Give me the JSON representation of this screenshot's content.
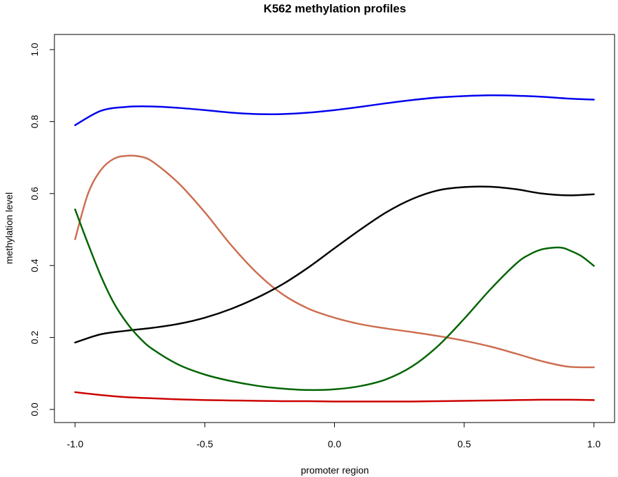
{
  "chart_data": {
    "type": "line",
    "title": "K562 methylation profiles",
    "xlabel": "promoter region",
    "ylabel": "methylation level",
    "xlim": [
      -1.0,
      1.0
    ],
    "ylim": [
      0.0,
      1.0
    ],
    "xticks": [
      -1.0,
      -0.5,
      0.0,
      0.5,
      1.0
    ],
    "xtick_labels": [
      "-1.0",
      "-0.5",
      "0.0",
      "0.5",
      "1.0"
    ],
    "yticks": [
      0.0,
      0.2,
      0.4,
      0.6,
      0.8,
      1.0
    ],
    "ytick_labels": [
      "0.0",
      "0.2",
      "0.4",
      "0.6",
      "0.8",
      "1.0"
    ],
    "grid": false,
    "legend": "none",
    "series": [
      {
        "color": "#0000ee",
        "x": [
          -1.0,
          -0.9,
          -0.8,
          -0.7,
          -0.6,
          -0.5,
          -0.4,
          -0.3,
          -0.2,
          -0.1,
          0.0,
          0.1,
          0.2,
          0.3,
          0.4,
          0.5,
          0.6,
          0.7,
          0.8,
          0.9,
          1.0
        ],
        "y": [
          0.79,
          0.83,
          0.841,
          0.842,
          0.838,
          0.832,
          0.825,
          0.821,
          0.821,
          0.825,
          0.832,
          0.841,
          0.851,
          0.86,
          0.867,
          0.871,
          0.873,
          0.872,
          0.869,
          0.864,
          0.861
        ]
      },
      {
        "color": "#cd6e50",
        "x": [
          -1.0,
          -0.95,
          -0.9,
          -0.85,
          -0.8,
          -0.75,
          -0.7,
          -0.6,
          -0.5,
          -0.4,
          -0.3,
          -0.2,
          -0.1,
          0.0,
          0.1,
          0.2,
          0.3,
          0.4,
          0.5,
          0.6,
          0.7,
          0.8,
          0.9,
          1.0
        ],
        "y": [
          0.473,
          0.6,
          0.666,
          0.697,
          0.705,
          0.703,
          0.688,
          0.628,
          0.548,
          0.458,
          0.38,
          0.32,
          0.28,
          0.255,
          0.237,
          0.225,
          0.215,
          0.204,
          0.191,
          0.175,
          0.155,
          0.134,
          0.119,
          0.117
        ]
      },
      {
        "color": "#000000",
        "x": [
          -1.0,
          -0.9,
          -0.8,
          -0.7,
          -0.6,
          -0.5,
          -0.4,
          -0.3,
          -0.2,
          -0.1,
          0.0,
          0.1,
          0.2,
          0.3,
          0.4,
          0.5,
          0.6,
          0.7,
          0.8,
          0.9,
          1.0
        ],
        "y": [
          0.186,
          0.209,
          0.219,
          0.227,
          0.238,
          0.255,
          0.279,
          0.31,
          0.348,
          0.395,
          0.448,
          0.5,
          0.548,
          0.585,
          0.609,
          0.618,
          0.619,
          0.612,
          0.6,
          0.595,
          0.598
        ]
      },
      {
        "color": "#006400",
        "x": [
          -1.0,
          -0.95,
          -0.9,
          -0.85,
          -0.8,
          -0.75,
          -0.7,
          -0.6,
          -0.5,
          -0.4,
          -0.3,
          -0.2,
          -0.1,
          0.0,
          0.1,
          0.2,
          0.3,
          0.4,
          0.5,
          0.6,
          0.7,
          0.75,
          0.8,
          0.85,
          0.88,
          0.9,
          0.95,
          1.0
        ],
        "y": [
          0.556,
          0.46,
          0.37,
          0.295,
          0.24,
          0.198,
          0.167,
          0.124,
          0.097,
          0.079,
          0.066,
          0.058,
          0.054,
          0.056,
          0.065,
          0.084,
          0.12,
          0.177,
          0.252,
          0.333,
          0.405,
          0.43,
          0.445,
          0.45,
          0.449,
          0.444,
          0.427,
          0.399
        ]
      },
      {
        "color": "#cc0000",
        "x": [
          -1.0,
          -0.9,
          -0.8,
          -0.7,
          -0.6,
          -0.5,
          -0.4,
          -0.3,
          -0.2,
          -0.1,
          0.0,
          0.1,
          0.2,
          0.3,
          0.4,
          0.5,
          0.6,
          0.7,
          0.8,
          0.9,
          1.0
        ],
        "y": [
          0.048,
          0.04,
          0.034,
          0.031,
          0.028,
          0.026,
          0.025,
          0.024,
          0.023,
          0.023,
          0.022,
          0.022,
          0.022,
          0.022,
          0.023,
          0.024,
          0.025,
          0.026,
          0.027,
          0.027,
          0.026
        ]
      }
    ]
  }
}
